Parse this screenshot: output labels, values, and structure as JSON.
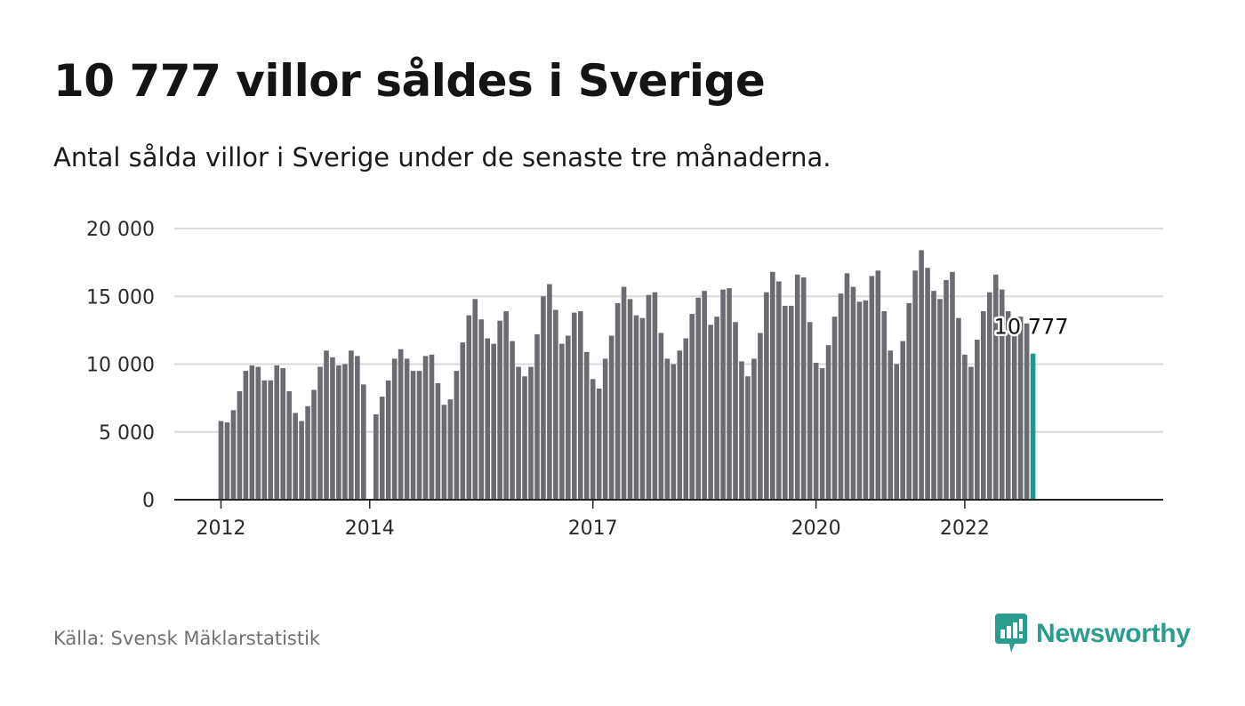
{
  "title": "10 777 villor såldes i Sverige",
  "subtitle": "Antal sålda villor i Sverige under de senaste tre månaderna.",
  "source": "Källa: Svensk Mäklarstatistik",
  "brand": {
    "name": "Newsworthy",
    "logo_icon": "newsworthy-logo-icon",
    "color": "#2a9d8f"
  },
  "colors": {
    "bar": "#6b6b72",
    "highlight": "#1a9a8c",
    "grid": "#d9d9d9",
    "axis": "#222222"
  },
  "chart_data": {
    "type": "bar",
    "x_unit": "month",
    "first_period": "2012-01",
    "ylim": [
      0,
      20000
    ],
    "yticks": [
      0,
      5000,
      10000,
      15000,
      20000
    ],
    "ytick_labels": [
      "0",
      "5 000",
      "10 000",
      "15 000",
      "20 000"
    ],
    "xticks": [
      "2012",
      "2014",
      "2017",
      "2020",
      "2022"
    ],
    "grid": true,
    "highlight_last": true,
    "annotation": "10 777",
    "values": [
      5800,
      5700,
      6600,
      8000,
      9500,
      9900,
      9800,
      8800,
      8800,
      9900,
      9700,
      8000,
      6400,
      5800,
      6900,
      8100,
      9800,
      11000,
      10500,
      9900,
      10000,
      11000,
      10600,
      8500,
      null,
      6300,
      7600,
      8800,
      10400,
      11100,
      10400,
      9500,
      9500,
      10600,
      10700,
      8600,
      7000,
      7400,
      9500,
      11600,
      13600,
      14800,
      13300,
      11900,
      11500,
      13200,
      13900,
      11700,
      9800,
      9100,
      9800,
      12200,
      15000,
      15900,
      14000,
      11500,
      12100,
      13800,
      13900,
      10900,
      8900,
      8200,
      10400,
      12100,
      14500,
      15700,
      14800,
      13600,
      13400,
      15100,
      15300,
      12300,
      10400,
      10000,
      11000,
      11900,
      13700,
      14900,
      15400,
      12900,
      13500,
      15500,
      15600,
      13100,
      10200,
      9100,
      10400,
      12300,
      15300,
      16800,
      16100,
      14300,
      14300,
      16600,
      16400,
      13100,
      10100,
      9700,
      11400,
      13500,
      15200,
      16700,
      15700,
      14600,
      14700,
      16500,
      16900,
      13900,
      11000,
      10000,
      11700,
      14500,
      16900,
      18400,
      17100,
      15400,
      14800,
      16200,
      16800,
      13400,
      10700,
      9800,
      11800,
      13900,
      15300,
      16600,
      15500,
      13900,
      12100,
      13500,
      13000,
      10777
    ]
  }
}
